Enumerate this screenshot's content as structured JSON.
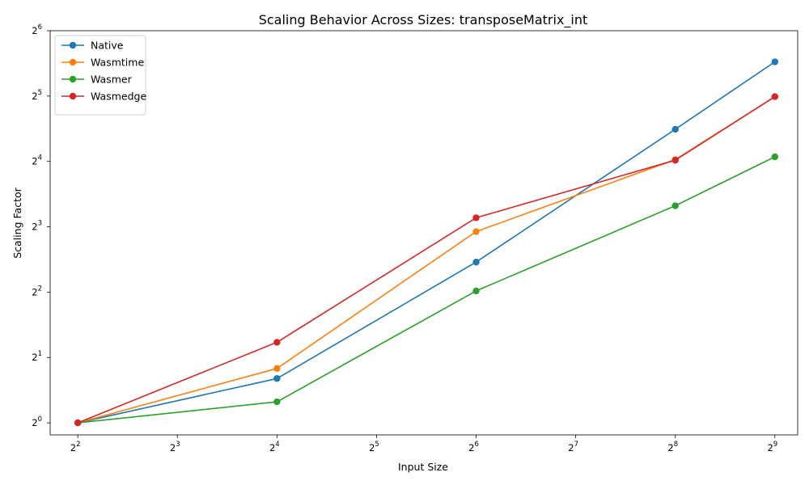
{
  "chart_data": {
    "type": "line",
    "title": "Scaling Behavior Across Sizes: transposeMatrix_int",
    "xlabel": "Input Size",
    "ylabel": "Scaling Factor",
    "xscale": "log2",
    "yscale": "log2",
    "x": [
      4,
      16,
      64,
      256,
      512
    ],
    "xlim": [
      3.3,
      600
    ],
    "ylim": [
      0.88,
      64
    ],
    "x_tick_exponents": [
      "2",
      "3",
      "4",
      "5",
      "6",
      "7",
      "8",
      "9"
    ],
    "y_tick_exponents": [
      "0",
      "1",
      "2",
      "3",
      "4",
      "5",
      "6"
    ],
    "tick_base": "2",
    "grid": false,
    "legend_position": "upper-left",
    "series": [
      {
        "name": "Native",
        "color": "#1f77b4",
        "values": [
          1.0,
          1.6,
          5.5,
          22.5,
          46.0
        ]
      },
      {
        "name": "Wasmtime",
        "color": "#ff7f0e",
        "values": [
          1.0,
          1.78,
          7.6,
          16.3,
          31.8
        ]
      },
      {
        "name": "Wasmer",
        "color": "#2ca02c",
        "values": [
          1.0,
          1.25,
          4.05,
          10.0,
          16.8
        ]
      },
      {
        "name": "Wasmedge",
        "color": "#d62728",
        "values": [
          1.0,
          2.35,
          8.8,
          16.2,
          31.8
        ]
      }
    ]
  }
}
